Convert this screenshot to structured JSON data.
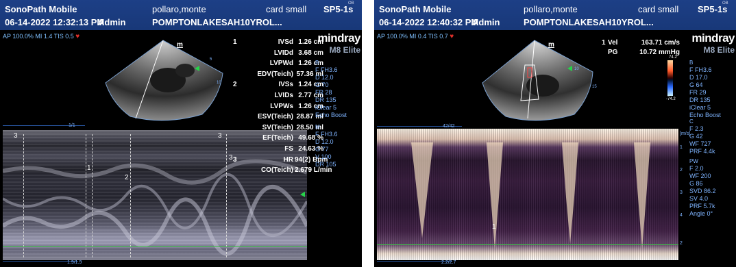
{
  "left": {
    "title_bar": {
      "app": "SonoPath Mobile",
      "patient": "pollaro,monte",
      "exam": "card small",
      "probe": "SP5-1s",
      "probe_sub": "OB",
      "datetime": "06-14-2022 12:32:13 PM",
      "operator": "Admin",
      "facility": "POMPTONLAKESAH10YROL..."
    },
    "ap_line": "AP 100.0%  MI 1.4  TIS 0.5",
    "logo": {
      "brand": "mindray",
      "model": "M8 Elite"
    },
    "measurements": [
      {
        "num": "1",
        "label": "IVSd",
        "value": "1.26 cm"
      },
      {
        "num": "",
        "label": "LVIDd",
        "value": "3.68 cm"
      },
      {
        "num": "",
        "label": "LVPWd",
        "value": "1.26 cm"
      },
      {
        "num": "",
        "label": "EDV(Teich)",
        "value": "57.36 ml"
      },
      {
        "num": "2",
        "label": "IVSs",
        "value": "1.24 cm"
      },
      {
        "num": "",
        "label": "LVIDs",
        "value": "2.77 cm"
      },
      {
        "num": "",
        "label": "LVPWs",
        "value": "1.26 cm"
      },
      {
        "num": "",
        "label": "ESV(Teich)",
        "value": "28.87 ml"
      },
      {
        "num": "",
        "label": "SV(Teich)",
        "value": "28.50 ml"
      },
      {
        "num": "",
        "label": "EF(Teich)",
        "value": "49.68 %"
      },
      {
        "num": "",
        "label": "FS",
        "value": "24.63 %"
      },
      {
        "num": "3",
        "label": "HR",
        "value": "94(2) Bpm"
      },
      {
        "num": "",
        "label": "CO(Teich)",
        "value": "2.679 L/min"
      }
    ],
    "params_b": [
      "B",
      "F FH3.6",
      "D 12.0",
      "G 70",
      "FR 28",
      "DR 135",
      "iClear 5",
      "Echo Boost"
    ],
    "params_m": [
      "M",
      "F FH3.6",
      "D 12.0",
      "G 77",
      "V 100",
      "DR 105"
    ],
    "sector_label": "m",
    "depth_marks": [
      "5",
      "10"
    ],
    "top_scale": "1/1",
    "bottom_scale": "1.9/1.9",
    "marker_labels": [
      "3",
      "3",
      "3",
      "1",
      "2"
    ]
  },
  "right": {
    "title_bar": {
      "app": "SonoPath Mobile",
      "patient": "pollaro,monte",
      "exam": "card small",
      "probe": "SP5-1s",
      "probe_sub": "OB",
      "datetime": "06-14-2022 12:40:32 PM",
      "operator": "Admin",
      "facility": "POMPTONLAKESAH10YROL..."
    },
    "ap_line": "AP 100.0%  MI 0.4  TIS 0.7",
    "logo": {
      "brand": "mindray",
      "model": "M8 Elite"
    },
    "velocity": [
      {
        "num": "1",
        "label": "Vel",
        "value": "163.71 cm/s"
      },
      {
        "num": "",
        "label": "PG",
        "value": "10.72 mmHg"
      }
    ],
    "colorbar_top": "74.2",
    "colorbar_bottom": "-74.2",
    "params_b": [
      "B",
      "F FH3.6",
      "D 17.0",
      "G 64",
      "FR 29",
      "DR 135",
      "iClear 5",
      "Echo Boost"
    ],
    "params_c": [
      "C",
      "F 2.3",
      "G 42",
      "WF 727",
      "PRF 4.4k"
    ],
    "params_pw": [
      "PW",
      "F 2.0",
      "WF 200",
      "G 86",
      "SVD 86.2",
      "SV 4.0",
      "PRF 5.7k",
      "Angle 0°"
    ],
    "sector_label": "m",
    "depth_marks": [
      "10",
      "15"
    ],
    "top_scale": "42/42",
    "bottom_scale": "2.2/2.7",
    "velocity_unit": "[m/s]",
    "velocity_ticks": [
      "1",
      "2",
      "3",
      "4",
      "2"
    ],
    "cursor_label": "1"
  }
}
